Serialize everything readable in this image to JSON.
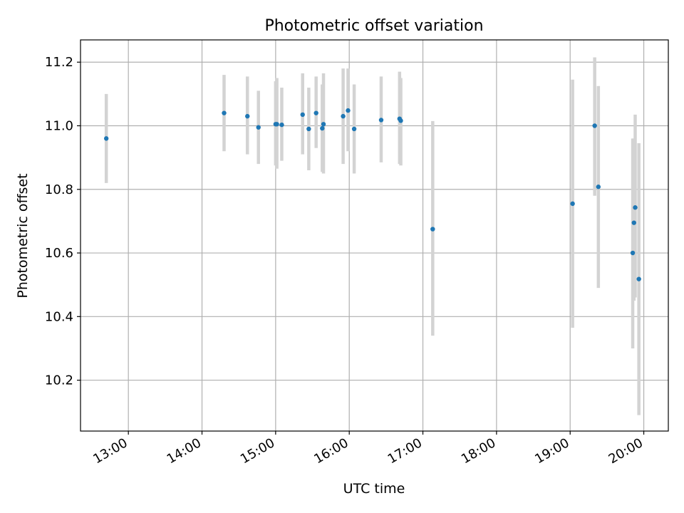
{
  "chart_data": {
    "type": "scatter",
    "title": "Photometric offset variation",
    "xlabel": "UTC time",
    "ylabel": "Photometric offset",
    "x_unit": "UTC time of day",
    "xlim": [
      "12:21",
      "20:20"
    ],
    "ylim": [
      10.04,
      11.27
    ],
    "x_ticks": [
      "13:00",
      "14:00",
      "15:00",
      "16:00",
      "17:00",
      "18:00",
      "19:00",
      "20:00"
    ],
    "y_ticks": [
      "10.2",
      "10.4",
      "10.6",
      "10.8",
      "11.0",
      "11.2"
    ],
    "grid": true,
    "marker_color": "#1f77b4",
    "errorbar_color": "#d3d3d3",
    "points": [
      {
        "x": "12:42",
        "y": 10.96,
        "ylo": 10.82,
        "yhi": 11.1
      },
      {
        "x": "14:18",
        "y": 11.04,
        "ylo": 10.92,
        "yhi": 11.16
      },
      {
        "x": "14:37",
        "y": 11.03,
        "ylo": 10.91,
        "yhi": 11.155
      },
      {
        "x": "14:46",
        "y": 10.995,
        "ylo": 10.88,
        "yhi": 11.11
      },
      {
        "x": "15:00",
        "y": 11.005,
        "ylo": 10.875,
        "yhi": 11.14
      },
      {
        "x": "15:01",
        "y": 11.005,
        "ylo": 10.865,
        "yhi": 11.15
      },
      {
        "x": "15:05",
        "y": 11.003,
        "ylo": 10.89,
        "yhi": 11.12
      },
      {
        "x": "15:22",
        "y": 11.035,
        "ylo": 10.91,
        "yhi": 11.165
      },
      {
        "x": "15:27",
        "y": 10.99,
        "ylo": 10.86,
        "yhi": 11.12
      },
      {
        "x": "15:33",
        "y": 11.04,
        "ylo": 10.93,
        "yhi": 11.155
      },
      {
        "x": "15:38",
        "y": 10.992,
        "ylo": 10.855,
        "yhi": 11.13
      },
      {
        "x": "15:39",
        "y": 11.005,
        "ylo": 10.85,
        "yhi": 11.165
      },
      {
        "x": "15:55",
        "y": 11.03,
        "ylo": 10.88,
        "yhi": 11.18
      },
      {
        "x": "15:59",
        "y": 11.048,
        "ylo": 10.92,
        "yhi": 11.18
      },
      {
        "x": "16:04",
        "y": 10.99,
        "ylo": 10.85,
        "yhi": 11.13
      },
      {
        "x": "16:26",
        "y": 11.018,
        "ylo": 10.885,
        "yhi": 11.155
      },
      {
        "x": "16:41",
        "y": 11.022,
        "ylo": 10.88,
        "yhi": 11.17
      },
      {
        "x": "16:42",
        "y": 11.016,
        "ylo": 10.875,
        "yhi": 11.15
      },
      {
        "x": "17:08",
        "y": 10.675,
        "ylo": 10.34,
        "yhi": 11.015
      },
      {
        "x": "19:02",
        "y": 10.755,
        "ylo": 10.365,
        "yhi": 11.145
      },
      {
        "x": "19:20",
        "y": 11.0,
        "ylo": 10.78,
        "yhi": 11.215
      },
      {
        "x": "19:23",
        "y": 10.808,
        "ylo": 10.49,
        "yhi": 11.125
      },
      {
        "x": "19:51",
        "y": 10.6,
        "ylo": 10.3,
        "yhi": 10.96
      },
      {
        "x": "19:52",
        "y": 10.695,
        "ylo": 10.45,
        "yhi": 10.96
      },
      {
        "x": "19:53",
        "y": 10.743,
        "ylo": 10.46,
        "yhi": 11.035
      },
      {
        "x": "19:56",
        "y": 10.518,
        "ylo": 10.09,
        "yhi": 10.945
      }
    ]
  }
}
